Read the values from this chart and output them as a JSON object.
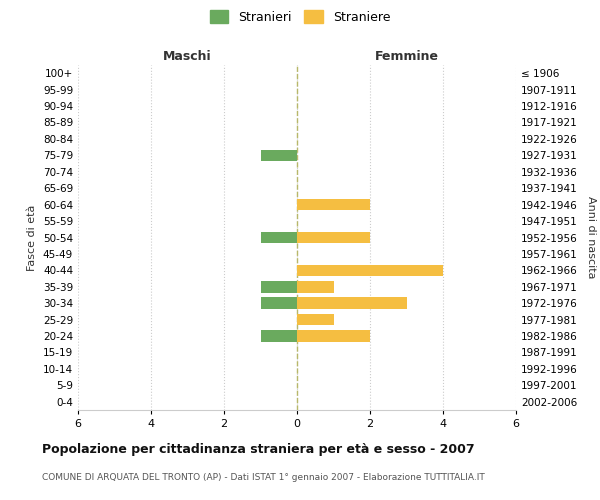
{
  "age_groups": [
    "100+",
    "95-99",
    "90-94",
    "85-89",
    "80-84",
    "75-79",
    "70-74",
    "65-69",
    "60-64",
    "55-59",
    "50-54",
    "45-49",
    "40-44",
    "35-39",
    "30-34",
    "25-29",
    "20-24",
    "15-19",
    "10-14",
    "5-9",
    "0-4"
  ],
  "birth_years": [
    "≤ 1906",
    "1907-1911",
    "1912-1916",
    "1917-1921",
    "1922-1926",
    "1927-1931",
    "1932-1936",
    "1937-1941",
    "1942-1946",
    "1947-1951",
    "1952-1956",
    "1957-1961",
    "1962-1966",
    "1967-1971",
    "1972-1976",
    "1977-1981",
    "1982-1986",
    "1987-1991",
    "1992-1996",
    "1997-2001",
    "2002-2006"
  ],
  "maschi_stranieri": [
    0,
    0,
    0,
    0,
    0,
    1,
    0,
    0,
    0,
    0,
    1,
    0,
    0,
    1,
    1,
    0,
    1,
    0,
    0,
    0,
    0
  ],
  "femmine_straniere": [
    0,
    0,
    0,
    0,
    0,
    0,
    0,
    0,
    2,
    0,
    2,
    0,
    4,
    1,
    3,
    1,
    2,
    0,
    0,
    0,
    0
  ],
  "color_maschi": "#6aaa5e",
  "color_femmine": "#f5be41",
  "xlim": 6,
  "title": "Popolazione per cittadinanza straniera per età e sesso - 2007",
  "subtitle": "COMUNE DI ARQUATA DEL TRONTO (AP) - Dati ISTAT 1° gennaio 2007 - Elaborazione TUTTITALIA.IT",
  "ylabel_left": "Fasce di età",
  "ylabel_right": "Anni di nascita",
  "label_maschi": "Maschi",
  "label_femmine": "Femmine",
  "legend_stranieri": "Stranieri",
  "legend_straniere": "Straniere",
  "grid_color": "#cccccc",
  "bg_color": "#ffffff",
  "bar_height": 0.7
}
